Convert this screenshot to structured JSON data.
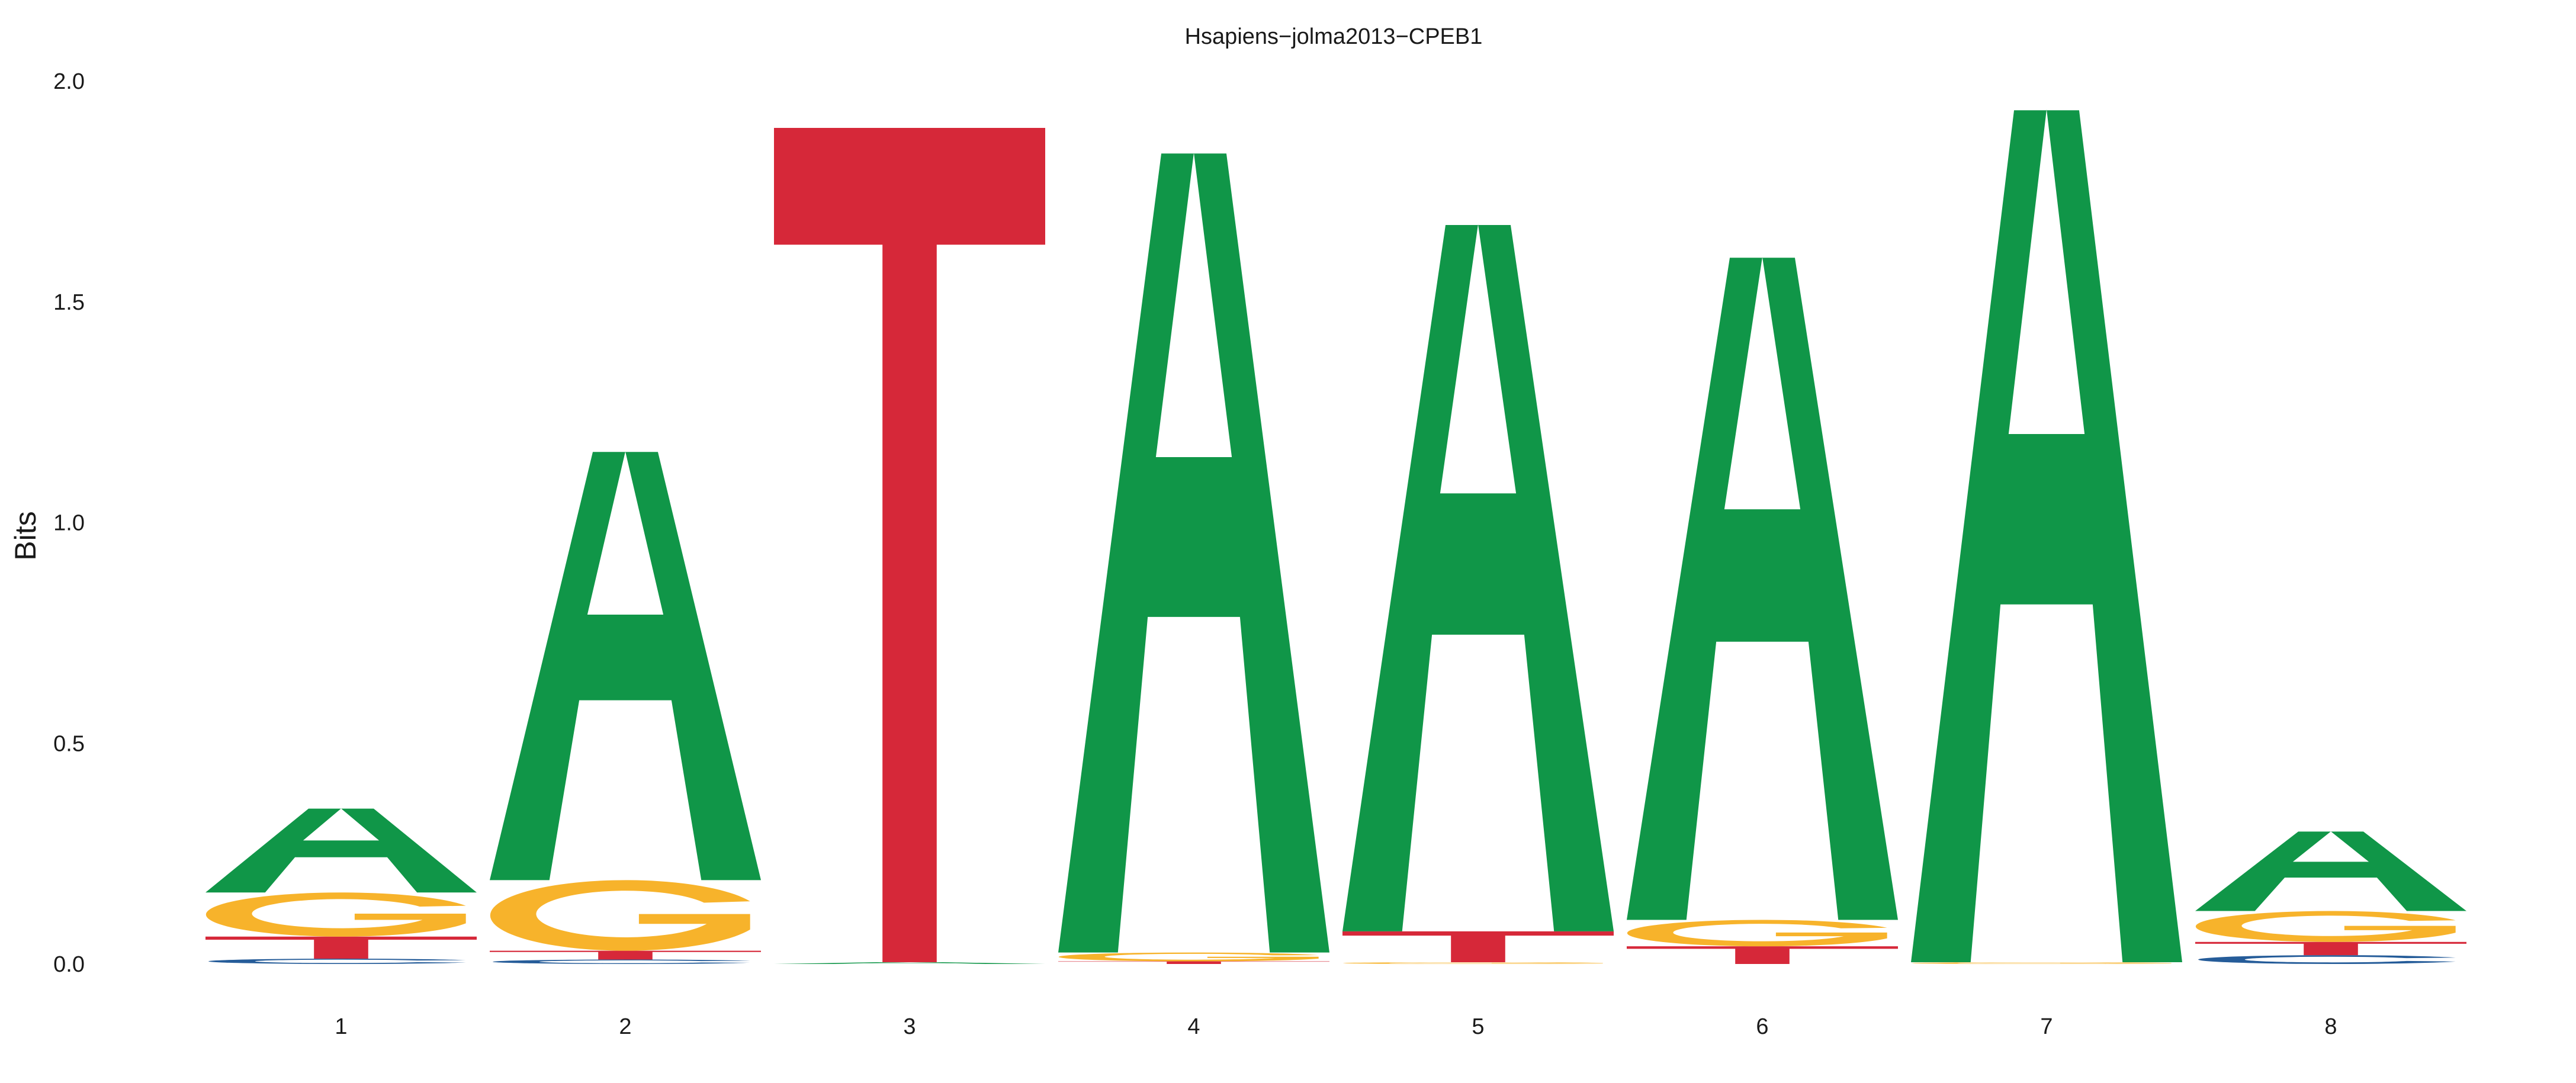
{
  "chart_data": {
    "type": "sequence-logo",
    "title": "Hsapiens−jolma2013−CPEB1",
    "xlabel": "",
    "ylabel": "Bits",
    "ylim": [
      0,
      2.0
    ],
    "yticks": [
      "0.0",
      "0.5",
      "1.0",
      "1.5",
      "2.0"
    ],
    "ytick_values": [
      0,
      0.5,
      1.0,
      1.5,
      2.0
    ],
    "positions": [
      "1",
      "2",
      "3",
      "4",
      "5",
      "6",
      "7",
      "8"
    ],
    "colors": {
      "A": "#109648",
      "C": "#255c99",
      "G": "#f7b32b",
      "T": "#d62839"
    },
    "stacks": [
      [
        {
          "letter": "C",
          "bits": 0.012
        },
        {
          "letter": "T",
          "bits": 0.05
        },
        {
          "letter": "G",
          "bits": 0.1
        },
        {
          "letter": "A",
          "bits": 0.19
        }
      ],
      [
        {
          "letter": "C",
          "bits": 0.01
        },
        {
          "letter": "T",
          "bits": 0.02
        },
        {
          "letter": "G",
          "bits": 0.16
        },
        {
          "letter": "A",
          "bits": 0.97
        }
      ],
      [
        {
          "letter": "A",
          "bits": 0.004
        },
        {
          "letter": "T",
          "bits": 1.89
        }
      ],
      [
        {
          "letter": "T",
          "bits": 0.006
        },
        {
          "letter": "G",
          "bits": 0.02
        },
        {
          "letter": "A",
          "bits": 1.81
        }
      ],
      [
        {
          "letter": "G",
          "bits": 0.004
        },
        {
          "letter": "T",
          "bits": 0.07
        },
        {
          "letter": "A",
          "bits": 1.6
        }
      ],
      [
        {
          "letter": "T",
          "bits": 0.04
        },
        {
          "letter": "G",
          "bits": 0.06
        },
        {
          "letter": "A",
          "bits": 1.5
        }
      ],
      [
        {
          "letter": "G",
          "bits": 0.004
        },
        {
          "letter": "A",
          "bits": 1.93
        }
      ],
      [
        {
          "letter": "C",
          "bits": 0.02
        },
        {
          "letter": "T",
          "bits": 0.03
        },
        {
          "letter": "G",
          "bits": 0.07
        },
        {
          "letter": "A",
          "bits": 0.18
        }
      ]
    ]
  }
}
